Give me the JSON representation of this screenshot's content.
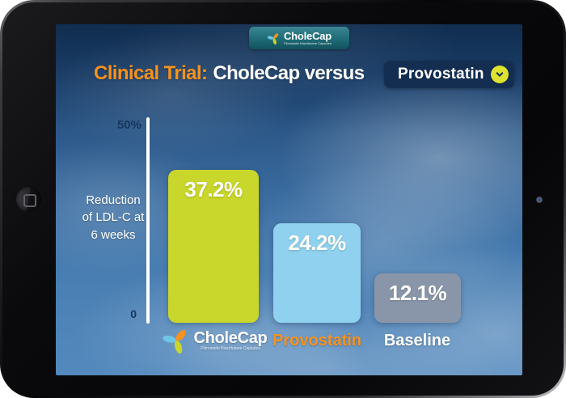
{
  "brand": {
    "name": "CholeCap",
    "tagline": "Fibrostatin Niacidutane Capsules",
    "logo_icon": "pinwheel-logo",
    "logo_colors": [
      "#f6921e",
      "#6ec6e4",
      "#c9d62b"
    ]
  },
  "header": {
    "title_prefix": "Clinical Trial:",
    "title_main": "CholeCap versus",
    "dropdown": {
      "selected": "Provostatin",
      "chevron_icon": "chevron-down",
      "chevron_bg": "#dde32f"
    }
  },
  "chart_data": {
    "type": "bar",
    "title": "Clinical Trial: CholeCap versus Provostatin",
    "ylabel": "Reduction of LDL-C at 6 weeks",
    "ylabel_display": "Reduction\nof LDL-C at\n6 weeks",
    "xlabel": "",
    "ylim": [
      0,
      50
    ],
    "yticks": [
      "0",
      "50%"
    ],
    "grid": false,
    "legend": false,
    "categories": [
      "CholeCap",
      "Provostatin",
      "Baseline"
    ],
    "values": [
      37.2,
      24.2,
      12.1
    ],
    "value_labels": [
      "37.2%",
      "24.2%",
      "12.1%"
    ],
    "bar_colors": [
      "#c9d62b",
      "#8fd1ee",
      "#8996a9"
    ],
    "category_label_colors": [
      "#ffffff",
      "#f6921e",
      "#ffffff"
    ]
  },
  "colors": {
    "accent_orange": "#f6921e",
    "navy_text": "#16365e",
    "dropdown_bg": "#142e52",
    "tab_teal": "#1f6b77",
    "sky_top": "#16395f",
    "sky_bottom": "#5389bd"
  }
}
